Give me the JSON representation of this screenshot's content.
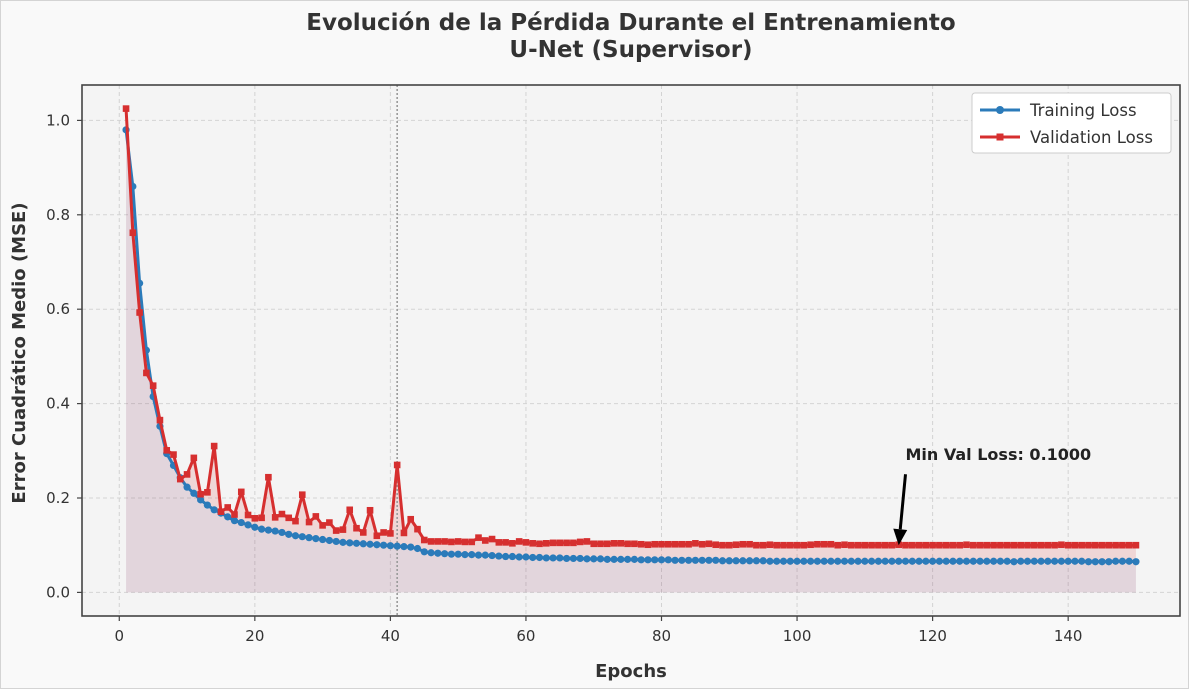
{
  "chart_data": {
    "type": "line",
    "title_line1": "Evolución de la Pérdida Durante el Entrenamiento",
    "title_line2": "U-Net (Supervisor)",
    "xlabel": "Epochs",
    "ylabel": "Error Cuadrático Medio (MSE)",
    "xlim": [
      -5.5,
      156.5
    ],
    "ylim": [
      -0.05,
      1.075
    ],
    "xticks": [
      0,
      20,
      40,
      60,
      80,
      100,
      120,
      140
    ],
    "yticks": [
      0.0,
      0.2,
      0.4,
      0.6,
      0.8,
      1.0
    ],
    "ytick_labels": [
      "0.0",
      "0.2",
      "0.4",
      "0.6",
      "0.8",
      "1.0"
    ],
    "grid": true,
    "legend_position": "top-right",
    "vline_x": 41,
    "x": [
      1,
      2,
      3,
      4,
      5,
      6,
      7,
      8,
      9,
      10,
      11,
      12,
      13,
      14,
      15,
      16,
      17,
      18,
      19,
      20,
      21,
      22,
      23,
      24,
      25,
      26,
      27,
      28,
      29,
      30,
      31,
      32,
      33,
      34,
      35,
      36,
      37,
      38,
      39,
      40,
      41,
      42,
      43,
      44,
      45,
      46,
      47,
      48,
      49,
      50,
      51,
      52,
      53,
      54,
      55,
      56,
      57,
      58,
      59,
      60,
      61,
      62,
      63,
      64,
      65,
      66,
      67,
      68,
      69,
      70,
      71,
      72,
      73,
      74,
      75,
      76,
      77,
      78,
      79,
      80,
      81,
      82,
      83,
      84,
      85,
      86,
      87,
      88,
      89,
      90,
      91,
      92,
      93,
      94,
      95,
      96,
      97,
      98,
      99,
      100,
      101,
      102,
      103,
      104,
      105,
      106,
      107,
      108,
      109,
      110,
      111,
      112,
      113,
      114,
      115,
      116,
      117,
      118,
      119,
      120,
      121,
      122,
      123,
      124,
      125,
      126,
      127,
      128,
      129,
      130,
      131,
      132,
      133,
      134,
      135,
      136,
      137,
      138,
      139,
      140,
      141,
      142,
      143,
      144,
      145,
      146,
      147,
      148,
      149,
      150
    ],
    "series": [
      {
        "name": "Training Loss",
        "color": "#2b7bba",
        "marker": "circle",
        "values": [
          0.98,
          0.86,
          0.655,
          0.513,
          0.415,
          0.352,
          0.294,
          0.269,
          0.243,
          0.223,
          0.21,
          0.196,
          0.185,
          0.175,
          0.168,
          0.16,
          0.152,
          0.148,
          0.143,
          0.138,
          0.134,
          0.132,
          0.13,
          0.127,
          0.123,
          0.12,
          0.118,
          0.116,
          0.114,
          0.112,
          0.11,
          0.108,
          0.106,
          0.105,
          0.104,
          0.103,
          0.102,
          0.101,
          0.1,
          0.099,
          0.098,
          0.097,
          0.096,
          0.093,
          0.086,
          0.084,
          0.083,
          0.082,
          0.081,
          0.081,
          0.08,
          0.08,
          0.079,
          0.079,
          0.078,
          0.077,
          0.076,
          0.076,
          0.075,
          0.075,
          0.074,
          0.074,
          0.073,
          0.073,
          0.073,
          0.072,
          0.072,
          0.072,
          0.071,
          0.071,
          0.071,
          0.07,
          0.07,
          0.07,
          0.07,
          0.07,
          0.069,
          0.069,
          0.069,
          0.069,
          0.069,
          0.068,
          0.068,
          0.068,
          0.068,
          0.068,
          0.068,
          0.068,
          0.067,
          0.067,
          0.067,
          0.067,
          0.067,
          0.067,
          0.067,
          0.066,
          0.066,
          0.066,
          0.066,
          0.066,
          0.066,
          0.066,
          0.066,
          0.066,
          0.066,
          0.066,
          0.066,
          0.066,
          0.066,
          0.066,
          0.066,
          0.066,
          0.066,
          0.066,
          0.066,
          0.066,
          0.066,
          0.066,
          0.066,
          0.066,
          0.066,
          0.066,
          0.066,
          0.066,
          0.066,
          0.066,
          0.066,
          0.066,
          0.066,
          0.066,
          0.066,
          0.065,
          0.066,
          0.066,
          0.066,
          0.066,
          0.066,
          0.066,
          0.066,
          0.066,
          0.066,
          0.066,
          0.065,
          0.065,
          0.065,
          0.065,
          0.066,
          0.066,
          0.066,
          0.065
        ]
      },
      {
        "name": "Validation Loss",
        "color": "#d62f2f",
        "marker": "square",
        "values": [
          1.025,
          0.762,
          0.593,
          0.465,
          0.438,
          0.365,
          0.301,
          0.292,
          0.24,
          0.25,
          0.285,
          0.208,
          0.212,
          0.31,
          0.171,
          0.18,
          0.165,
          0.213,
          0.164,
          0.157,
          0.158,
          0.244,
          0.159,
          0.166,
          0.158,
          0.151,
          0.207,
          0.149,
          0.161,
          0.142,
          0.148,
          0.131,
          0.133,
          0.175,
          0.136,
          0.127,
          0.174,
          0.12,
          0.127,
          0.125,
          0.27,
          0.126,
          0.155,
          0.134,
          0.111,
          0.108,
          0.108,
          0.108,
          0.107,
          0.108,
          0.107,
          0.107,
          0.116,
          0.11,
          0.113,
          0.106,
          0.106,
          0.104,
          0.108,
          0.106,
          0.104,
          0.103,
          0.104,
          0.105,
          0.105,
          0.105,
          0.105,
          0.107,
          0.108,
          0.103,
          0.103,
          0.103,
          0.104,
          0.104,
          0.103,
          0.103,
          0.102,
          0.101,
          0.102,
          0.102,
          0.102,
          0.102,
          0.102,
          0.102,
          0.104,
          0.102,
          0.103,
          0.101,
          0.1,
          0.1,
          0.101,
          0.102,
          0.102,
          0.1,
          0.1,
          0.101,
          0.1,
          0.1,
          0.1,
          0.1,
          0.1,
          0.101,
          0.102,
          0.102,
          0.102,
          0.1,
          0.101,
          0.1,
          0.1,
          0.1,
          0.1,
          0.1,
          0.1,
          0.1,
          0.101,
          0.1,
          0.1,
          0.1,
          0.1,
          0.1,
          0.1,
          0.1,
          0.1,
          0.1,
          0.101,
          0.1,
          0.1,
          0.1,
          0.1,
          0.1,
          0.1,
          0.1,
          0.1,
          0.1,
          0.1,
          0.1,
          0.1,
          0.1,
          0.101,
          0.1,
          0.1,
          0.1,
          0.1,
          0.1,
          0.1,
          0.1,
          0.1,
          0.1,
          0.1,
          0.1
        ]
      }
    ],
    "annotation": {
      "text": "Min Val Loss: 0.1000",
      "point_x": 115,
      "point_y": 0.1,
      "text_x": 116,
      "text_y": 0.28
    }
  }
}
